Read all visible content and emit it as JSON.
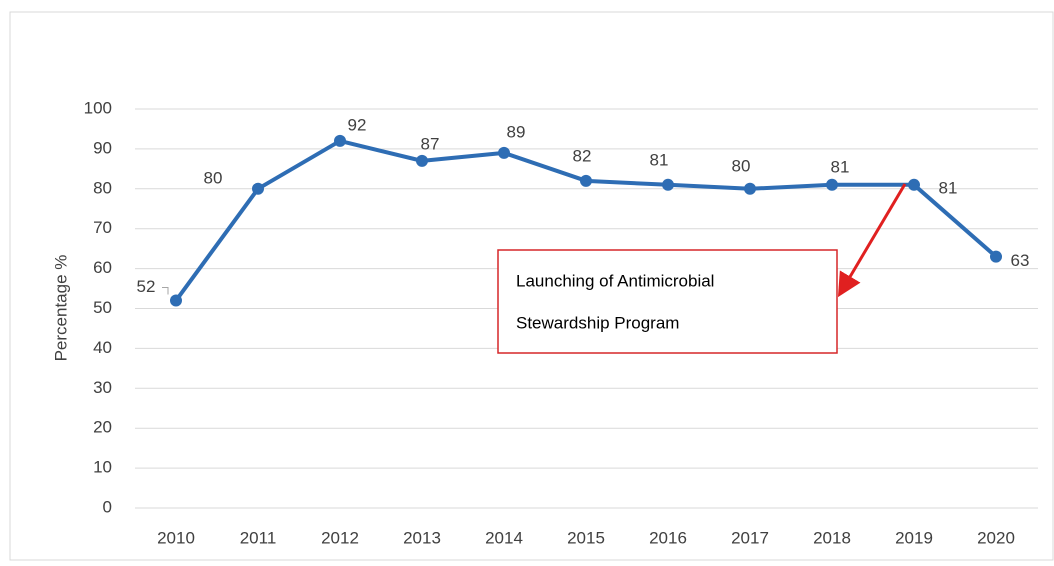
{
  "chart_data": {
    "type": "line",
    "y_label": "Percentage %",
    "categories": [
      "2010",
      "2011",
      "2012",
      "2013",
      "2014",
      "2015",
      "2016",
      "2017",
      "2018",
      "2019",
      "2020"
    ],
    "series": [
      {
        "name": "Percentage",
        "color": "#2e6db4",
        "values": [
          52,
          80,
          92,
          87,
          89,
          82,
          81,
          80,
          81,
          81,
          63
        ]
      }
    ],
    "ylim": [
      0,
      100
    ],
    "yticks": [
      0,
      10,
      20,
      30,
      40,
      50,
      60,
      70,
      80,
      90,
      100
    ],
    "grid": true,
    "annotation": {
      "lines": [
        "Launching of Antimicrobial",
        "Stewardship Program"
      ]
    }
  }
}
